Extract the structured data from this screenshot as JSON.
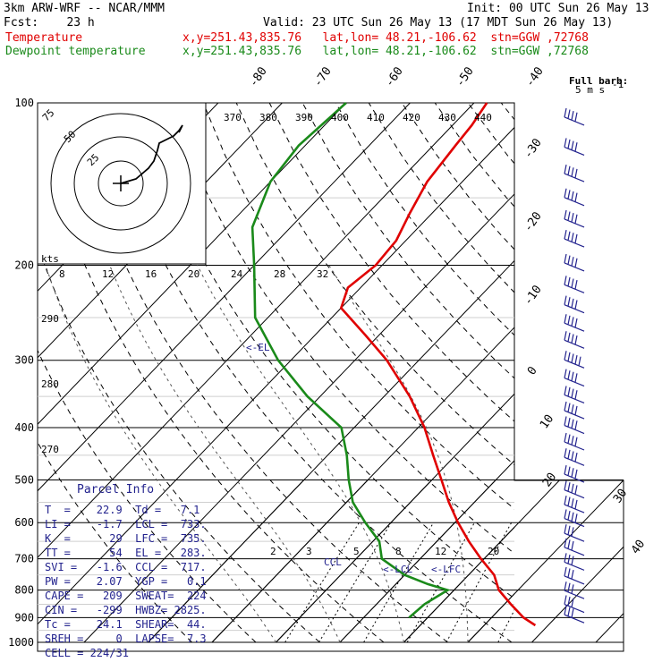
{
  "header": {
    "model": "3km ARW-WRF -- NCAR/MMM",
    "init": "Init: 00 UTC Sun 26 May 13",
    "fcst": "Fcst:    23 h",
    "valid": "Valid: 23 UTC Sun 26 May 13 (17 MDT Sun 26 May 13)",
    "temp_label": "Temperature",
    "temp_info": "x,y=251.43,835.76   lat,lon= 48.21,-106.62  stn=GGW ,72768",
    "dew_label": "Dewpoint temperature",
    "dew_info": "x,y=251.43,835.76   lat,lon= 48.21,-106.62  stn=GGW ,72768"
  },
  "colors": {
    "temperature": "#e00000",
    "dewpoint": "#1a8a1a",
    "barbs": "#23238e",
    "hodograph": "#000000"
  },
  "barb_legend": {
    "title": "Full barb:",
    "value": "5 m s",
    "sup": "-1"
  },
  "chart_data": {
    "type": "line",
    "title": "",
    "yscale": "log-pressure",
    "ylim": [
      1000,
      100
    ],
    "pressure_ticks": [
      100,
      200,
      300,
      400,
      500,
      600,
      700,
      800,
      900,
      1000
    ],
    "isotherm_labels_top": [
      -80,
      -70,
      -60,
      -50,
      -40
    ],
    "isotherm_labels_right": [
      -30,
      -20,
      -10,
      0,
      10,
      20,
      30,
      40
    ],
    "theta_labels": [
      "370",
      "380",
      "390",
      "400",
      "410",
      "420",
      "430",
      "440"
    ],
    "dry_adiabat_labels": [
      "290",
      "280",
      "270"
    ],
    "mixing_ratio_labels": [
      "2",
      "3",
      "5",
      "8",
      "12",
      "20"
    ],
    "annotations": [
      "<-EL",
      "<-LCL",
      "<-LFC",
      "CCL"
    ],
    "series": [
      {
        "name": "Temperature",
        "points": [
          [
            930,
            28.0
          ],
          [
            900,
            25.0
          ],
          [
            850,
            21.0
          ],
          [
            800,
            17.0
          ],
          [
            750,
            14.0
          ],
          [
            700,
            9.5
          ],
          [
            650,
            5.0
          ],
          [
            600,
            0.5
          ],
          [
            550,
            -4.0
          ],
          [
            500,
            -8.5
          ],
          [
            450,
            -13.5
          ],
          [
            400,
            -19.0
          ],
          [
            350,
            -26.0
          ],
          [
            300,
            -35.0
          ],
          [
            270,
            -42.0
          ],
          [
            240,
            -50.0
          ],
          [
            220,
            -52.0
          ],
          [
            200,
            -51.0
          ],
          [
            180,
            -51.5
          ],
          [
            160,
            -53.5
          ],
          [
            140,
            -55.5
          ],
          [
            120,
            -56.5
          ],
          [
            110,
            -57.0
          ],
          [
            100,
            -58.0
          ]
        ]
      },
      {
        "name": "Dewpoint temperature",
        "points": [
          [
            900,
            7.1
          ],
          [
            850,
            7.5
          ],
          [
            800,
            9.0
          ],
          [
            780,
            5.0
          ],
          [
            750,
            0.0
          ],
          [
            700,
            -6.0
          ],
          [
            650,
            -9.0
          ],
          [
            600,
            -14.0
          ],
          [
            550,
            -19.0
          ],
          [
            500,
            -23.0
          ],
          [
            450,
            -27.0
          ],
          [
            400,
            -32.0
          ],
          [
            350,
            -42.0
          ],
          [
            300,
            -52.0
          ],
          [
            250,
            -62.0
          ],
          [
            200,
            -70.0
          ],
          [
            170,
            -76.0
          ],
          [
            140,
            -80.0
          ],
          [
            120,
            -81.0
          ],
          [
            100,
            -80.0
          ]
        ]
      }
    ]
  },
  "hodograph": {
    "unit": "kts",
    "ring_labels": [
      "25",
      "50",
      "75"
    ]
  },
  "speed_axis": {
    "ticks": [
      "8",
      "12",
      "16",
      "20",
      "24",
      "28",
      "32"
    ]
  },
  "parcel_info": {
    "title": "Parcel Info",
    "rows": [
      "T  =    22.9  Td =   7.1",
      "LI =    -1.7  LCL =  733.",
      "K  =      29  LFC =  735.",
      "TT =      54  EL =   283.",
      "SVI =   -1.6  CCL =  717.",
      "PW =    2.07  YGP =   0.1",
      "CAPE =   209  SWEAT=  224",
      "CIN =   -299  HWBZ= 2825.",
      "Tc =    24.1  SHEAR=  44.",
      "SREH =     0  LAPSE=  7.3",
      "CELL = 224/31"
    ]
  },
  "wind_barbs": [
    {
      "p": 110,
      "speed_ms": 20
    },
    {
      "p": 125,
      "speed_ms": 20
    },
    {
      "p": 140,
      "speed_ms": 20
    },
    {
      "p": 155,
      "speed_ms": 20
    },
    {
      "p": 170,
      "speed_ms": 20
    },
    {
      "p": 185,
      "speed_ms": 20
    },
    {
      "p": 205,
      "speed_ms": 20
    },
    {
      "p": 225,
      "speed_ms": 20
    },
    {
      "p": 245,
      "speed_ms": 20
    },
    {
      "p": 265,
      "speed_ms": 20
    },
    {
      "p": 285,
      "speed_ms": 20
    },
    {
      "p": 310,
      "speed_ms": 25
    },
    {
      "p": 335,
      "speed_ms": 20
    },
    {
      "p": 360,
      "speed_ms": 20
    },
    {
      "p": 385,
      "speed_ms": 20
    },
    {
      "p": 410,
      "speed_ms": 20
    },
    {
      "p": 440,
      "speed_ms": 20
    },
    {
      "p": 470,
      "speed_ms": 20
    },
    {
      "p": 505,
      "speed_ms": 20
    },
    {
      "p": 540,
      "speed_ms": 20
    },
    {
      "p": 575,
      "speed_ms": 20
    },
    {
      "p": 610,
      "speed_ms": 20
    },
    {
      "p": 650,
      "speed_ms": 15
    },
    {
      "p": 690,
      "speed_ms": 15
    },
    {
      "p": 735,
      "speed_ms": 15
    },
    {
      "p": 780,
      "speed_ms": 15
    },
    {
      "p": 830,
      "speed_ms": 15
    },
    {
      "p": 880,
      "speed_ms": 15
    },
    {
      "p": 920,
      "speed_ms": 15
    }
  ]
}
